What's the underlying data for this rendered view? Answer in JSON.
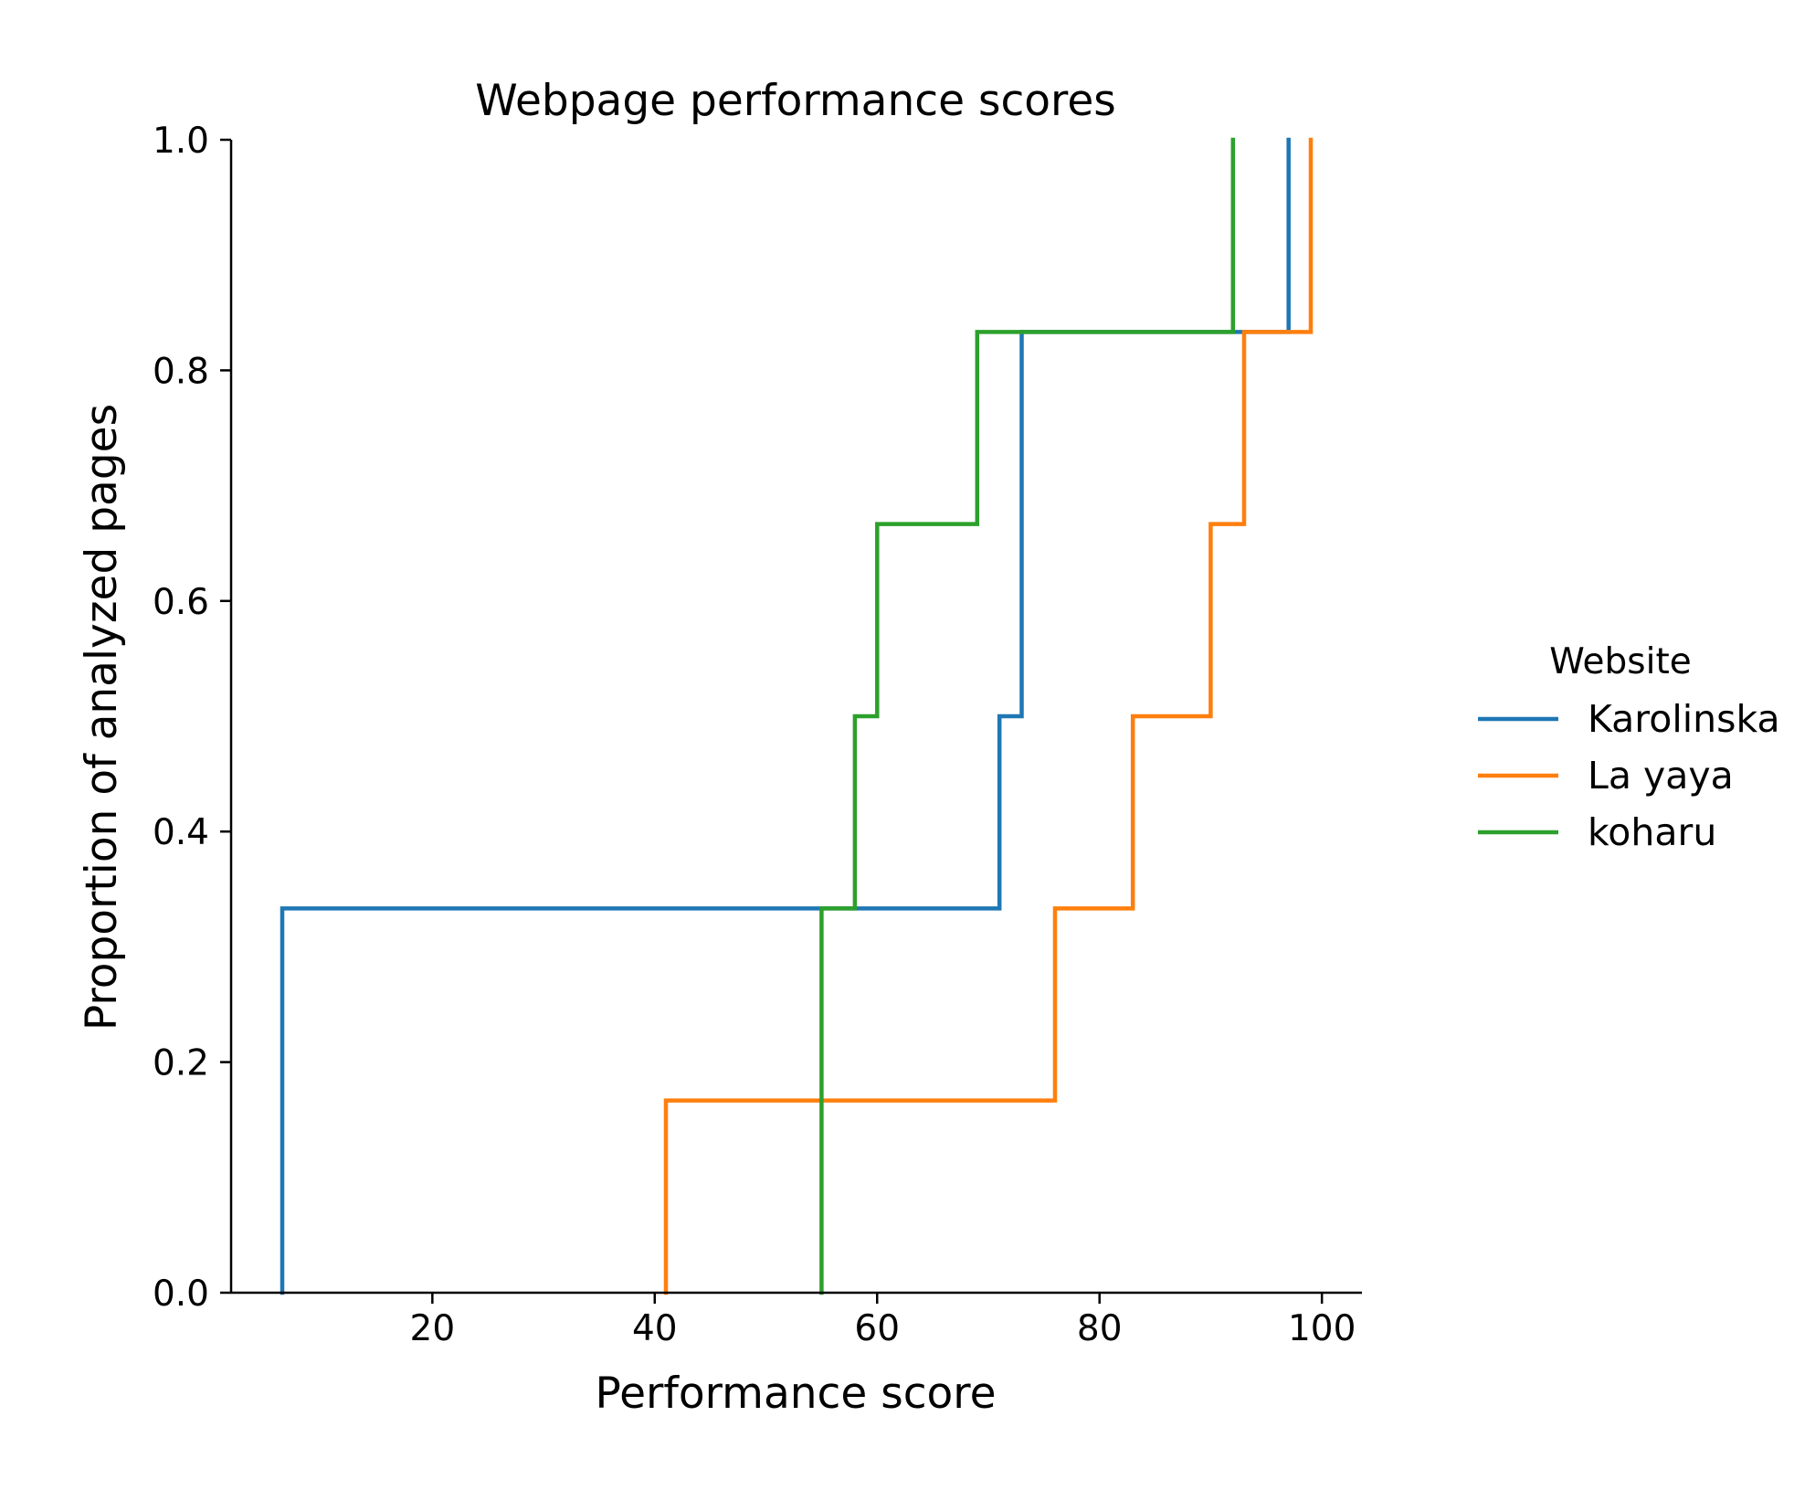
{
  "chart_data": {
    "type": "line",
    "step": "post",
    "title": "Webpage performance scores",
    "xlabel": "Performance score",
    "ylabel": "Proportion of analyzed pages",
    "xlim": [
      1.9,
      103.6
    ],
    "ylim": [
      0.0,
      1.0
    ],
    "xticks": [
      20,
      40,
      60,
      80,
      100
    ],
    "xtick_labels": [
      "20",
      "40",
      "60",
      "80",
      "100"
    ],
    "yticks": [
      0.0,
      0.2,
      0.4,
      0.6,
      0.8,
      1.0
    ],
    "ytick_labels": [
      "0.0",
      "0.2",
      "0.4",
      "0.6",
      "0.8",
      "1.0"
    ],
    "grid": false,
    "legend": {
      "title": "Website",
      "placement": "right, outside plot"
    },
    "series": [
      {
        "name": "Karolinska",
        "color": "#1f77b4",
        "x": [
          6.5,
          71,
          73,
          97
        ],
        "y": [
          0.3333,
          0.5,
          0.8333,
          1.0
        ]
      },
      {
        "name": "La yaya",
        "color": "#ff7f0e",
        "x": [
          41,
          76,
          83,
          90,
          93,
          99
        ],
        "y": [
          0.1667,
          0.3333,
          0.5,
          0.6667,
          0.8333,
          1.0
        ]
      },
      {
        "name": "koharu",
        "color": "#2ca02c",
        "x": [
          55,
          58,
          60,
          69,
          92
        ],
        "y": [
          0.3333,
          0.5,
          0.6667,
          0.8333,
          1.0
        ]
      }
    ]
  }
}
